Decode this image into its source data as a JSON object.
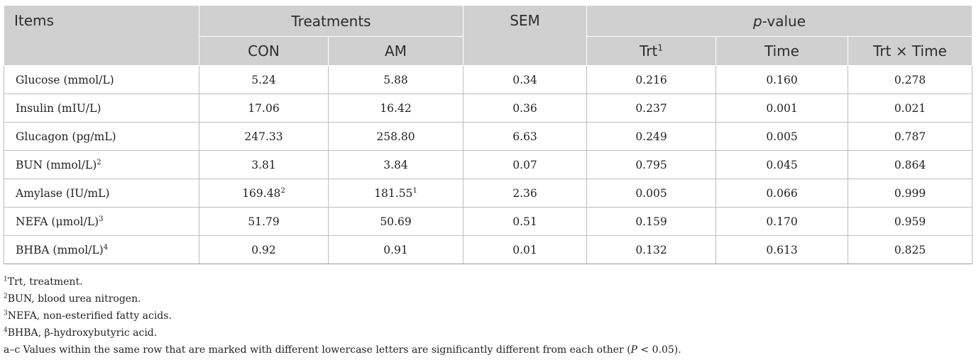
{
  "header": {
    "items": "Items",
    "treatments": "Treatments",
    "sem": "SEM",
    "pvalue_italic": "p",
    "pvalue_rest": "-value",
    "con": "CON",
    "am": "AM",
    "trt": "Trt",
    "trt_sup": "1",
    "time": "Time",
    "trt_x_time": "Trt × Time"
  },
  "rows": [
    {
      "item": "Glucose (mmol/L)",
      "item_sup": "",
      "con": "5.24",
      "con_sup": "",
      "am": "5.88",
      "am_sup": "",
      "sem": "0.34",
      "trt": "0.216",
      "time": "0.160",
      "trtxtime": "0.278"
    },
    {
      "item": "Insulin (mIU/L)",
      "item_sup": "",
      "con": "17.06",
      "con_sup": "",
      "am": "16.42",
      "am_sup": "",
      "sem": "0.36",
      "trt": "0.237",
      "time": "0.001",
      "trtxtime": "0.021"
    },
    {
      "item": "Glucagon (pg/mL)",
      "item_sup": "",
      "con": "247.33",
      "con_sup": "",
      "am": "258.80",
      "am_sup": "",
      "sem": "6.63",
      "trt": "0.249",
      "time": "0.005",
      "trtxtime": "0.787"
    },
    {
      "item": "BUN (mmol/L)",
      "item_sup": "2",
      "con": "3.81",
      "con_sup": "",
      "am": "3.84",
      "am_sup": "",
      "sem": "0.07",
      "trt": "0.795",
      "time": "0.045",
      "trtxtime": "0.864"
    },
    {
      "item": "Amylase (IU/mL)",
      "item_sup": "",
      "con": "169.48",
      "con_sup": "2",
      "am": "181.55",
      "am_sup": "1",
      "sem": "2.36",
      "trt": "0.005",
      "time": "0.066",
      "trtxtime": "0.999"
    },
    {
      "item": "NEFA (μmol/L)",
      "item_sup": "3",
      "con": "51.79",
      "con_sup": "",
      "am": "50.69",
      "am_sup": "",
      "sem": "0.51",
      "trt": "0.159",
      "time": "0.170",
      "trtxtime": "0.959"
    },
    {
      "item": "BHBA (mmol/L)",
      "item_sup": "4",
      "con": "0.92",
      "con_sup": "",
      "am": "0.91",
      "am_sup": "",
      "sem": "0.01",
      "trt": "0.132",
      "time": "0.613",
      "trtxtime": "0.825"
    }
  ],
  "footnotes": {
    "n1_sup": "1",
    "n1": "Trt, treatment.",
    "n2_sup": "2",
    "n2": "BUN, blood urea nitrogen.",
    "n3_sup": "3",
    "n3": "NEFA, non-esterified fatty acids.",
    "n4_sup": "4",
    "n4": "BHBA, β-hydroxybutyric acid.",
    "n5_a": "a–c Values within the same row that are marked with different lowercase letters are significantly different from each other (",
    "n5_p": "P",
    "n5_b": " < 0.05)."
  }
}
